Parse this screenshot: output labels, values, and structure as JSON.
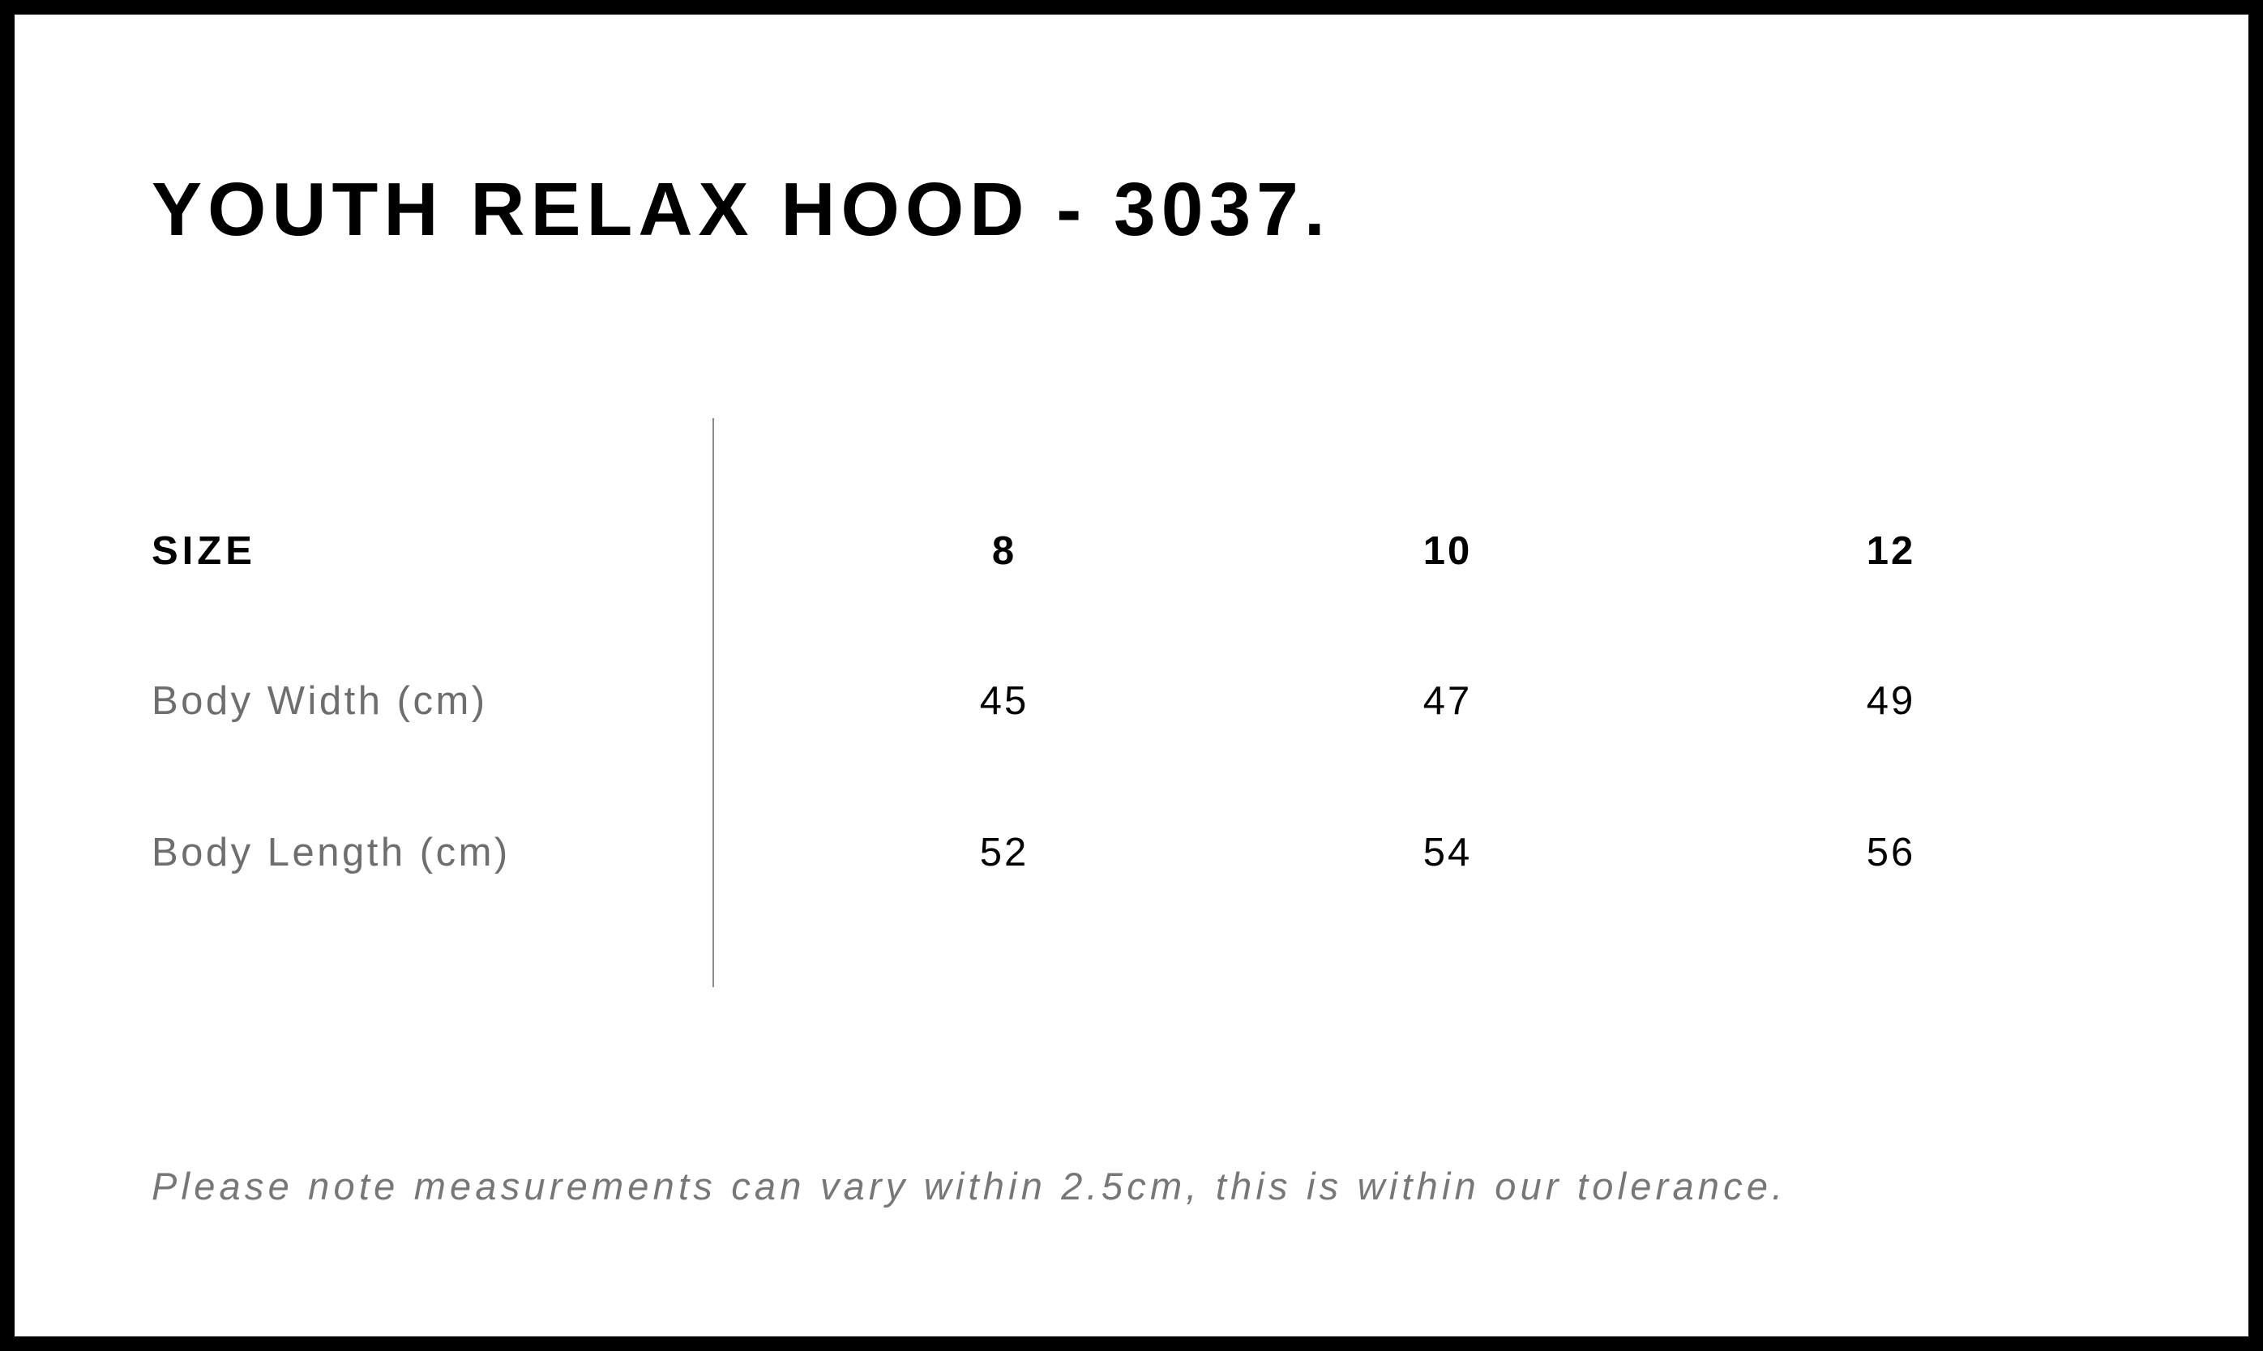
{
  "title": "YOUTH RELAX HOOD - 3037.",
  "table": {
    "header": {
      "label": "SIZE",
      "sizes": [
        "8",
        "10",
        "12"
      ]
    },
    "rows": [
      {
        "label": "Body Width (cm)",
        "values": [
          "45",
          "47",
          "49"
        ]
      },
      {
        "label": "Body Length (cm)",
        "values": [
          "52",
          "54",
          "56"
        ]
      }
    ]
  },
  "note": "Please note measurements can vary within 2.5cm, this is within our tolerance.",
  "colors": {
    "border": "#000000",
    "label_text": "#6e6e6e",
    "note_text": "#777777",
    "divider": "#8a8a8a"
  }
}
